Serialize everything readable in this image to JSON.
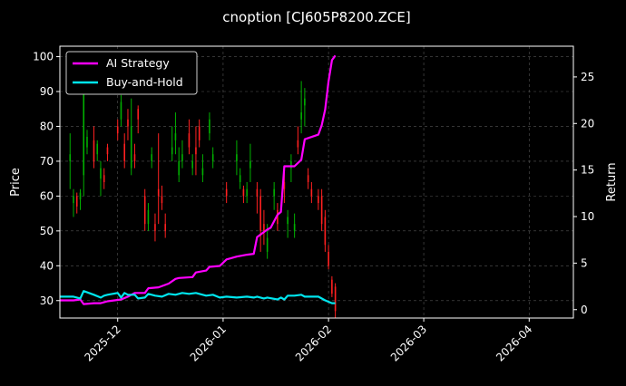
{
  "chart_data": {
    "type": "line",
    "title": "cnoption [CJ605P8200.ZCE]",
    "ylabel_left": "Price",
    "ylabel_right": "Return",
    "x_range": [
      "2025-11-14",
      "2026-04-14"
    ],
    "ylim_left": [
      25,
      103
    ],
    "ylim_right": [
      -0.9,
      28.3
    ],
    "x_ticks": [
      "2025-12",
      "2026-01",
      "2026-02",
      "2026-03",
      "2026-04"
    ],
    "y_ticks_left": [
      30,
      40,
      50,
      60,
      70,
      80,
      90,
      100
    ],
    "y_ticks_right": [
      0,
      5,
      10,
      15,
      20,
      25
    ],
    "grid": true,
    "legend_position": "top-left",
    "background": "#000000",
    "colors": {
      "ai_strategy": "#ff00ff",
      "buy_and_hold": "#00e5ee",
      "candle_up": "#00b000",
      "candle_down": "#ff2020",
      "grid": "#555555"
    },
    "series": [
      {
        "name": "AI Strategy",
        "axis": "right",
        "points": [
          [
            "2025-11-14",
            1.0
          ],
          [
            "2025-11-18",
            1.0
          ],
          [
            "2025-11-20",
            1.1
          ],
          [
            "2025-11-21",
            0.6
          ],
          [
            "2025-11-24",
            0.7
          ],
          [
            "2025-11-26",
            0.7
          ],
          [
            "2025-11-28",
            0.9
          ],
          [
            "2025-12-02",
            1.1
          ],
          [
            "2025-12-04",
            1.4
          ],
          [
            "2025-12-06",
            1.8
          ],
          [
            "2025-12-09",
            1.8
          ],
          [
            "2025-12-10",
            2.3
          ],
          [
            "2025-12-13",
            2.4
          ],
          [
            "2025-12-16",
            2.8
          ],
          [
            "2025-12-18",
            3.3
          ],
          [
            "2025-12-19",
            3.4
          ],
          [
            "2025-12-23",
            3.5
          ],
          [
            "2025-12-24",
            4.0
          ],
          [
            "2025-12-27",
            4.2
          ],
          [
            "2025-12-28",
            4.6
          ],
          [
            "2025-12-31",
            4.7
          ],
          [
            "2026-01-02",
            5.4
          ],
          [
            "2026-01-05",
            5.7
          ],
          [
            "2026-01-08",
            5.9
          ],
          [
            "2026-01-10",
            6.0
          ],
          [
            "2026-01-11",
            7.8
          ],
          [
            "2026-01-14",
            8.6
          ],
          [
            "2026-01-15",
            8.8
          ],
          [
            "2026-01-17",
            10.2
          ],
          [
            "2026-01-18",
            10.5
          ],
          [
            "2026-01-19",
            15.4
          ],
          [
            "2026-01-20",
            15.4
          ],
          [
            "2026-01-22",
            15.4
          ],
          [
            "2026-01-24",
            16.1
          ],
          [
            "2026-01-25",
            18.3
          ],
          [
            "2026-01-29",
            18.8
          ],
          [
            "2026-01-30",
            19.8
          ],
          [
            "2026-01-31",
            21.5
          ],
          [
            "2026-02-01",
            24.5
          ],
          [
            "2026-02-02",
            26.8
          ],
          [
            "2026-02-03",
            27.3
          ]
        ]
      },
      {
        "name": "Buy-and-Hold",
        "axis": "right",
        "points": [
          [
            "2025-11-14",
            1.4
          ],
          [
            "2025-11-18",
            1.4
          ],
          [
            "2025-11-20",
            1.2
          ],
          [
            "2025-11-21",
            2.0
          ],
          [
            "2025-11-24",
            1.6
          ],
          [
            "2025-11-26",
            1.3
          ],
          [
            "2025-11-27",
            1.5
          ],
          [
            "2025-11-28",
            1.6
          ],
          [
            "2025-12-01",
            1.8
          ],
          [
            "2025-12-02",
            1.3
          ],
          [
            "2025-12-03",
            1.8
          ],
          [
            "2025-12-04",
            1.6
          ],
          [
            "2025-12-06",
            1.6
          ],
          [
            "2025-12-07",
            1.2
          ],
          [
            "2025-12-09",
            1.3
          ],
          [
            "2025-12-10",
            1.7
          ],
          [
            "2025-12-12",
            1.5
          ],
          [
            "2025-12-14",
            1.4
          ],
          [
            "2025-12-16",
            1.7
          ],
          [
            "2025-12-18",
            1.6
          ],
          [
            "2025-12-20",
            1.8
          ],
          [
            "2025-12-22",
            1.7
          ],
          [
            "2025-12-24",
            1.8
          ],
          [
            "2025-12-27",
            1.5
          ],
          [
            "2025-12-29",
            1.6
          ],
          [
            "2025-12-31",
            1.3
          ],
          [
            "2026-01-02",
            1.4
          ],
          [
            "2026-01-05",
            1.3
          ],
          [
            "2026-01-08",
            1.4
          ],
          [
            "2026-01-10",
            1.3
          ],
          [
            "2026-01-11",
            1.4
          ],
          [
            "2026-01-13",
            1.2
          ],
          [
            "2026-01-14",
            1.3
          ],
          [
            "2026-01-17",
            1.1
          ],
          [
            "2026-01-18",
            1.3
          ],
          [
            "2026-01-19",
            1.1
          ],
          [
            "2026-01-20",
            1.5
          ],
          [
            "2026-01-22",
            1.5
          ],
          [
            "2026-01-24",
            1.6
          ],
          [
            "2026-01-25",
            1.4
          ],
          [
            "2026-01-29",
            1.4
          ],
          [
            "2026-01-31",
            1.0
          ],
          [
            "2026-02-02",
            0.7
          ],
          [
            "2026-02-03",
            0.7
          ]
        ]
      }
    ],
    "candles": [
      [
        "2025-11-17",
        70,
        72,
        62,
        78
      ],
      [
        "2025-11-18",
        58,
        60,
        54,
        62
      ],
      [
        "2025-11-19",
        60,
        57,
        55,
        61
      ],
      [
        "2025-11-20",
        59,
        61,
        56,
        62
      ],
      [
        "2025-11-21",
        66,
        91,
        60,
        95
      ],
      [
        "2025-11-22",
        74,
        77,
        72,
        79
      ],
      [
        "2025-11-24",
        76,
        70,
        68,
        80
      ],
      [
        "2025-11-25",
        72,
        75,
        70,
        76
      ],
      [
        "2025-11-26",
        65,
        68,
        60,
        70
      ],
      [
        "2025-11-27",
        66,
        64,
        62,
        68
      ],
      [
        "2025-11-28",
        74,
        72,
        70,
        75
      ],
      [
        "2025-12-01",
        80,
        78,
        76,
        82
      ],
      [
        "2025-12-02",
        82,
        87,
        80,
        89
      ],
      [
        "2025-12-03",
        75,
        70,
        68,
        78
      ],
      [
        "2025-12-04",
        82,
        80,
        76,
        85
      ],
      [
        "2025-12-05",
        68,
        80,
        66,
        88
      ],
      [
        "2025-12-06",
        72,
        70,
        68,
        75
      ],
      [
        "2025-12-07",
        85,
        82,
        78,
        86
      ],
      [
        "2025-12-09",
        60,
        52,
        50,
        62
      ],
      [
        "2025-12-10",
        52,
        56,
        50,
        58
      ],
      [
        "2025-12-11",
        70,
        72,
        68,
        74
      ],
      [
        "2025-12-12",
        52,
        50,
        47,
        55
      ],
      [
        "2025-12-13",
        62,
        60,
        52,
        78
      ],
      [
        "2025-12-14",
        60,
        58,
        56,
        63
      ],
      [
        "2025-12-15",
        52,
        50,
        48,
        55
      ],
      [
        "2025-12-17",
        72,
        74,
        70,
        80
      ],
      [
        "2025-12-18",
        76,
        78,
        72,
        84
      ],
      [
        "2025-12-19",
        66,
        70,
        64,
        74
      ],
      [
        "2025-12-20",
        70,
        72,
        68,
        76
      ],
      [
        "2025-12-22",
        78,
        74,
        72,
        82
      ],
      [
        "2025-12-23",
        68,
        70,
        66,
        72
      ],
      [
        "2025-12-24",
        74,
        72,
        66,
        80
      ],
      [
        "2025-12-25",
        80,
        76,
        74,
        82
      ],
      [
        "2025-12-26",
        66,
        68,
        64,
        72
      ],
      [
        "2025-12-28",
        78,
        82,
        76,
        84
      ],
      [
        "2025-12-29",
        70,
        72,
        68,
        74
      ],
      [
        "2026-01-02",
        62,
        60,
        58,
        64
      ],
      [
        "2026-01-05",
        70,
        72,
        66,
        76
      ],
      [
        "2026-01-06",
        64,
        66,
        62,
        68
      ],
      [
        "2026-01-07",
        62,
        60,
        58,
        63
      ],
      [
        "2026-01-08",
        60,
        62,
        58,
        64
      ],
      [
        "2026-01-09",
        68,
        70,
        64,
        75
      ],
      [
        "2026-01-11",
        62,
        60,
        55,
        64
      ],
      [
        "2026-01-12",
        60,
        50,
        44,
        62
      ],
      [
        "2026-01-13",
        52,
        50,
        46,
        56
      ],
      [
        "2026-01-14",
        44,
        48,
        42,
        52
      ],
      [
        "2026-01-16",
        60,
        62,
        56,
        64
      ],
      [
        "2026-01-17",
        56,
        52,
        50,
        58
      ],
      [
        "2026-01-19",
        64,
        62,
        58,
        68
      ],
      [
        "2026-01-20",
        52,
        54,
        48,
        56
      ],
      [
        "2026-01-21",
        68,
        70,
        64,
        72
      ],
      [
        "2026-01-22",
        50,
        52,
        48,
        55
      ],
      [
        "2026-01-23",
        76,
        74,
        72,
        80
      ],
      [
        "2026-01-24",
        82,
        84,
        78,
        93
      ],
      [
        "2026-01-25",
        86,
        88,
        80,
        91
      ],
      [
        "2026-01-26",
        66,
        64,
        62,
        68
      ],
      [
        "2026-01-27",
        62,
        60,
        58,
        64
      ],
      [
        "2026-01-29",
        60,
        58,
        56,
        62
      ],
      [
        "2026-01-30",
        60,
        52,
        50,
        62
      ],
      [
        "2026-01-31",
        54,
        46,
        44,
        56
      ],
      [
        "2026-02-01",
        44,
        40,
        39,
        46
      ],
      [
        "2026-02-02",
        36,
        32,
        31,
        37
      ],
      [
        "2026-02-03",
        34,
        27,
        25,
        35
      ]
    ]
  }
}
